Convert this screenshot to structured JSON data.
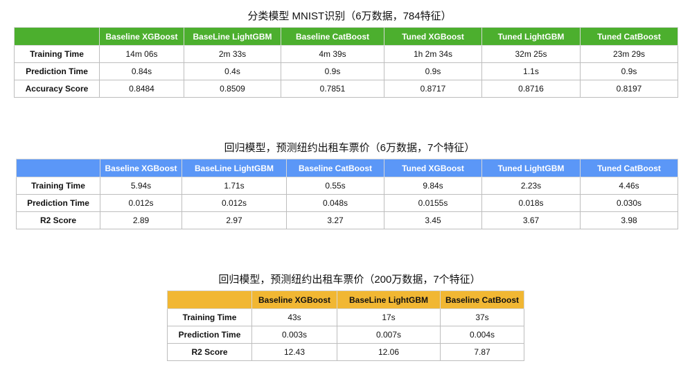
{
  "tables": [
    {
      "title": "分类模型 MNIST识别（6万数据，784特征）",
      "headers": [
        "",
        "Baseline XGBoost",
        "BaseLine LightGBM",
        "Baseline CatBoost",
        "Tuned  XGBoost",
        "Tuned LightGBM",
        "Tuned CatBoost"
      ],
      "rows": [
        {
          "label": "Training Time",
          "values": [
            "14m 06s",
            "2m 33s",
            "4m 39s",
            "1h 2m 34s",
            "32m 25s",
            "23m 29s"
          ]
        },
        {
          "label": "Prediction Time",
          "values": [
            "0.84s",
            "0.4s",
            "0.9s",
            "0.9s",
            "1.1s",
            "0.9s"
          ]
        },
        {
          "label": "Accuracy Score",
          "values": [
            "0.8484",
            "0.8509",
            "0.7851",
            "0.8717",
            "0.8716",
            "0.8197"
          ]
        }
      ]
    },
    {
      "title": "回归模型，预测纽约出租车票价（6万数据，7个特征）",
      "headers": [
        "",
        "Baseline XGBoost",
        "BaseLine LightGBM",
        "Baseline CatBoost",
        "Tuned  XGBoost",
        "Tuned LightGBM",
        "Tuned CatBoost"
      ],
      "rows": [
        {
          "label": "Training Time",
          "values": [
            "5.94s",
            "1.71s",
            "0.55s",
            "9.84s",
            "2.23s",
            "4.46s"
          ]
        },
        {
          "label": "Prediction Time",
          "values": [
            "0.012s",
            "0.012s",
            "0.048s",
            "0.0155s",
            "0.018s",
            "0.030s"
          ]
        },
        {
          "label": "R2 Score",
          "values": [
            "2.89",
            "2.97",
            "3.27",
            "3.45",
            "3.67",
            "3.98"
          ]
        }
      ]
    },
    {
      "title": "回归模型，预测纽约出租车票价（200万数据，7个特征）",
      "headers": [
        "",
        "Baseline XGBoost",
        "BaseLine LightGBM",
        "Baseline CatBoost"
      ],
      "rows": [
        {
          "label": "Training Time",
          "values": [
            "43s",
            "17s",
            "37s"
          ]
        },
        {
          "label": "Prediction Time",
          "values": [
            "0.003s",
            "0.007s",
            "0.004s"
          ]
        },
        {
          "label": "R2 Score",
          "values": [
            "12.43",
            "12.06",
            "7.87"
          ]
        }
      ]
    }
  ],
  "colors": {
    "table1_header": "#4caf2e",
    "table2_header": "#5b97f7",
    "table3_header": "#f1b733"
  }
}
